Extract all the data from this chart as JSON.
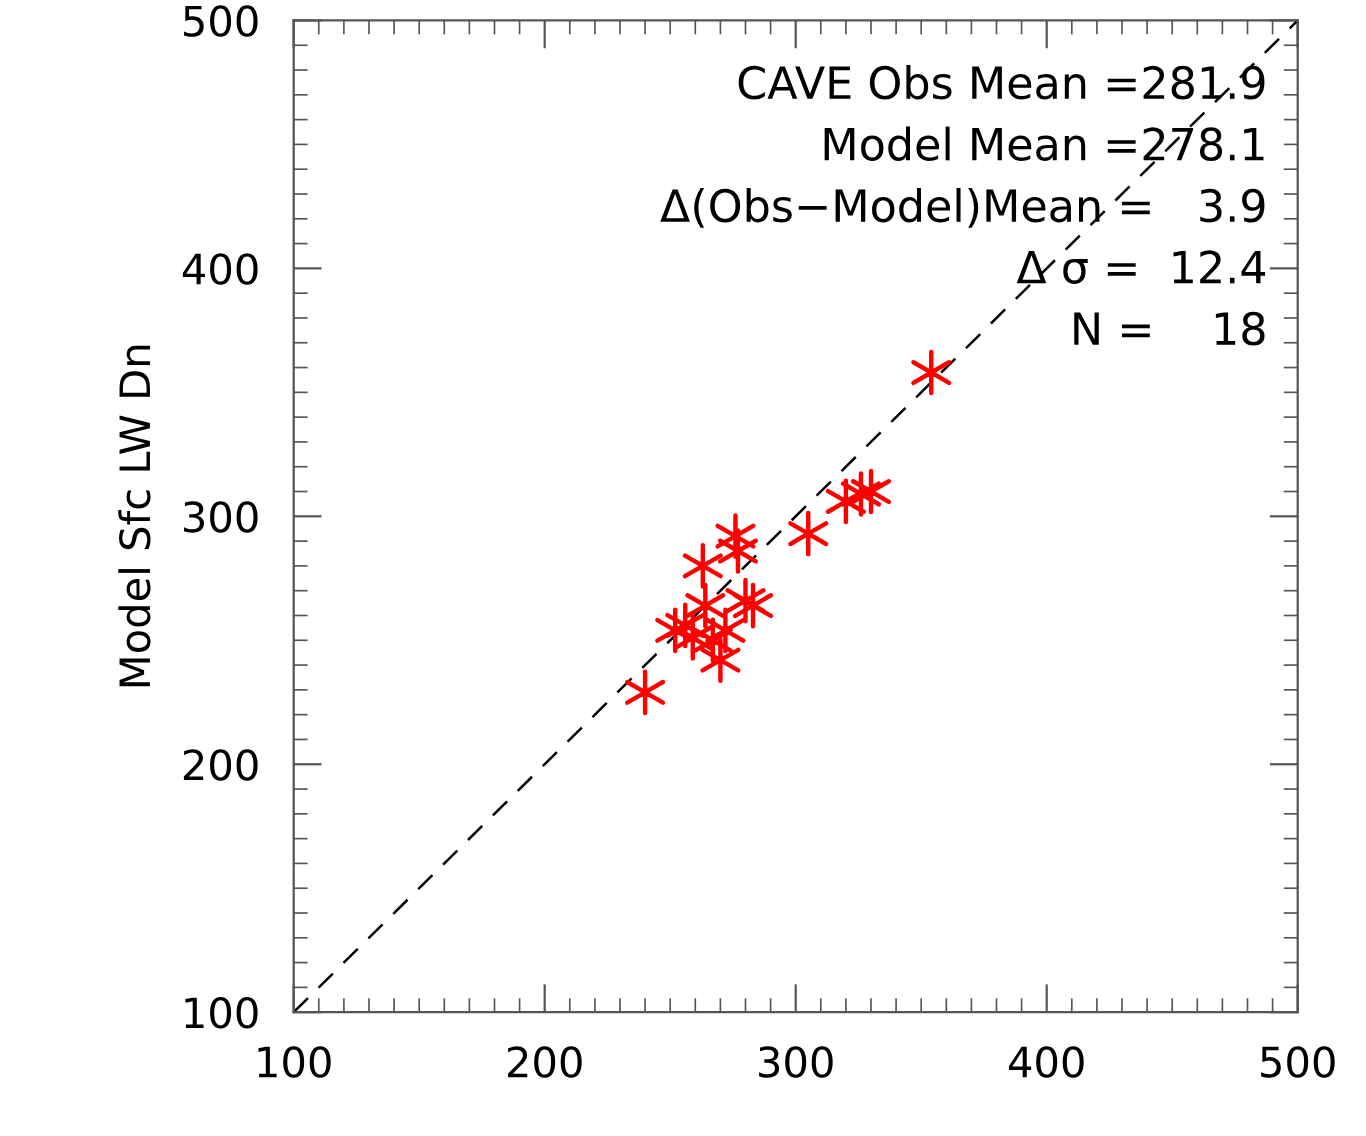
{
  "chart_data": {
    "type": "scatter",
    "ylabel": "Model Sfc LW Dn",
    "xlim": [
      100,
      500
    ],
    "ylim": [
      100,
      500
    ],
    "xticks": [
      100,
      200,
      300,
      400,
      500
    ],
    "yticks": [
      100,
      200,
      300,
      400,
      500
    ],
    "grid": false,
    "marker": "cross",
    "series": [
      {
        "color": "#ff0000",
        "x": [
          240,
          354,
          305,
          320,
          326,
          330,
          276,
          277,
          263,
          264,
          280,
          283,
          252,
          259,
          272,
          270,
          267,
          256
        ],
        "values": [
          229,
          358,
          293,
          306,
          309,
          310,
          292,
          286,
          280,
          264,
          266,
          264,
          254,
          251,
          254,
          242,
          250,
          256
        ]
      },
      {
        "type": "line",
        "color": "#000000",
        "line_style": "dashed",
        "marker": "none",
        "x": [
          100,
          500
        ],
        "values": [
          100,
          500
        ]
      }
    ],
    "annotations": [
      "CAVE Obs Mean =281.9",
      "Model Mean =278.1",
      "Δ(Obs−Model)Mean =   3.9",
      "Δ σ =  12.4",
      "N =    18"
    ]
  }
}
